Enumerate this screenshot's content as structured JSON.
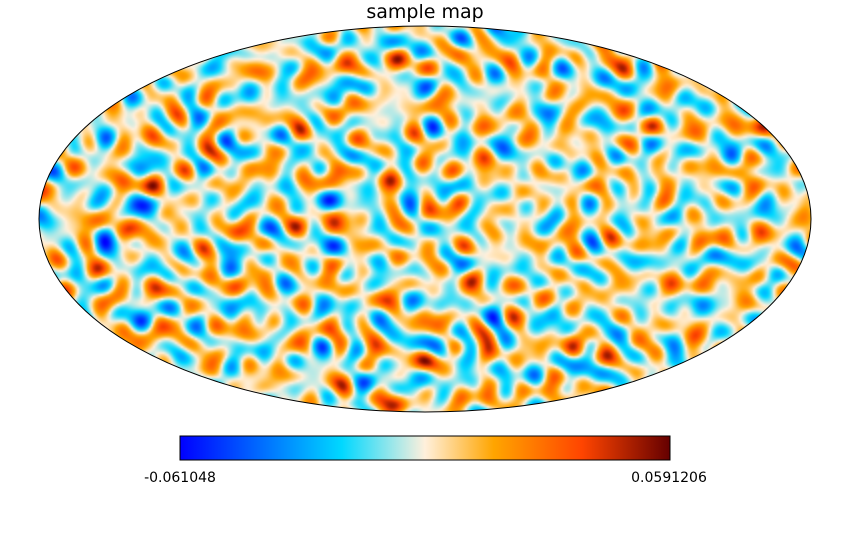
{
  "chart_data": {
    "type": "heatmap",
    "projection": "mollweide",
    "title": "sample map",
    "colormap": "planck",
    "colormap_stops": [
      "#0000ff",
      "#00d8ff",
      "#fff0dc",
      "#ffa500",
      "#ff4500",
      "#650000"
    ],
    "colorbar": {
      "orientation": "horizontal",
      "placement": "bottom",
      "min": -0.061048,
      "max": 0.0591206,
      "min_label": "-0.061048",
      "max_label": "0.0591206"
    },
    "grid": false
  }
}
